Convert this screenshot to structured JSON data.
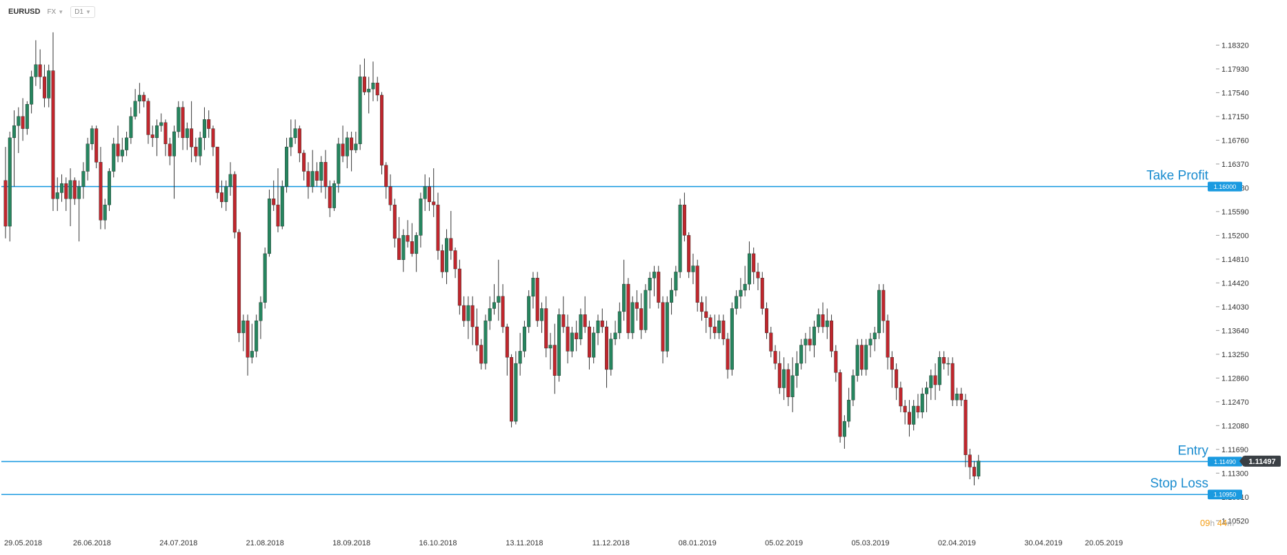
{
  "toolbar": {
    "symbol": "EURUSD",
    "market": "FX",
    "timeframe": "D1"
  },
  "timer": {
    "hours": "09",
    "h_unit": "h",
    "minutes": "44",
    "m_unit": "m"
  },
  "colors": {
    "bull": "#26855f",
    "bear": "#c0262d",
    "wick": "#333333",
    "level_line": "#1a9ae0",
    "level_tag": "#1a9ae0",
    "current_tag": "#3a3f44"
  },
  "chart_data": {
    "type": "candlestick",
    "title": "",
    "xlabel": "",
    "ylabel": "",
    "ylim": [
      1.1041,
      1.1863
    ],
    "y_ticks": [
      "1.18320",
      "1.17930",
      "1.17540",
      "1.17150",
      "1.16760",
      "1.16370",
      "1.15980",
      "1.15590",
      "1.15200",
      "1.14810",
      "1.14420",
      "1.14030",
      "1.13640",
      "1.13250",
      "1.12860",
      "1.12470",
      "1.12080",
      "1.11690",
      "1.11300",
      "1.10910",
      "1.10520"
    ],
    "x_ticks": [
      {
        "label": "29.05.2018",
        "idx": 0
      },
      {
        "label": "26.06.2018",
        "idx": 20
      },
      {
        "label": "24.07.2018",
        "idx": 40
      },
      {
        "label": "21.08.2018",
        "idx": 60
      },
      {
        "label": "18.09.2018",
        "idx": 80
      },
      {
        "label": "16.10.2018",
        "idx": 100
      },
      {
        "label": "13.11.2018",
        "idx": 120
      },
      {
        "label": "11.12.2018",
        "idx": 140
      },
      {
        "label": "08.01.2019",
        "idx": 160
      },
      {
        "label": "05.02.2019",
        "idx": 180
      },
      {
        "label": "05.03.2019",
        "idx": 200
      },
      {
        "label": "02.04.2019",
        "idx": 220
      },
      {
        "label": "30.04.2019",
        "idx": 240
      },
      {
        "label": "20.05.2019",
        "idx": 254
      }
    ],
    "levels": [
      {
        "name": "Take Profit",
        "tag": "1.16000",
        "value": 1.16
      },
      {
        "name": "Entry",
        "tag": "1.11490",
        "value": 1.1149
      },
      {
        "name": "Stop Loss",
        "tag": "1.10950",
        "value": 1.1095
      }
    ],
    "current_price": {
      "tag": "1.11497",
      "value": 1.11497
    },
    "candles": [
      [
        1.161,
        1.1665,
        1.1515,
        1.1535
      ],
      [
        1.1535,
        1.169,
        1.151,
        1.168
      ],
      [
        1.168,
        1.1725,
        1.16,
        1.17
      ],
      [
        1.17,
        1.173,
        1.1655,
        1.1715
      ],
      [
        1.1715,
        1.1745,
        1.1675,
        1.1695
      ],
      [
        1.1695,
        1.174,
        1.1685,
        1.1735
      ],
      [
        1.1735,
        1.179,
        1.172,
        1.178
      ],
      [
        1.178,
        1.184,
        1.1765,
        1.18
      ],
      [
        1.18,
        1.1825,
        1.176,
        1.178
      ],
      [
        1.178,
        1.18,
        1.173,
        1.1745
      ],
      [
        1.1745,
        1.18,
        1.173,
        1.179
      ],
      [
        1.179,
        1.1853,
        1.156,
        1.158
      ],
      [
        1.158,
        1.1615,
        1.156,
        1.159
      ],
      [
        1.159,
        1.162,
        1.1575,
        1.1605
      ],
      [
        1.1605,
        1.1615,
        1.156,
        1.158
      ],
      [
        1.158,
        1.163,
        1.1535,
        1.161
      ],
      [
        1.161,
        1.1615,
        1.157,
        1.158
      ],
      [
        1.158,
        1.161,
        1.151,
        1.16
      ],
      [
        1.16,
        1.164,
        1.158,
        1.1625
      ],
      [
        1.1625,
        1.168,
        1.161,
        1.167
      ],
      [
        1.167,
        1.17,
        1.166,
        1.1695
      ],
      [
        1.1695,
        1.17,
        1.163,
        1.164
      ],
      [
        1.164,
        1.1665,
        1.153,
        1.1545
      ],
      [
        1.1545,
        1.158,
        1.153,
        1.157
      ],
      [
        1.157,
        1.163,
        1.156,
        1.1625
      ],
      [
        1.1625,
        1.168,
        1.1615,
        1.167
      ],
      [
        1.167,
        1.17,
        1.164,
        1.165
      ],
      [
        1.165,
        1.168,
        1.164,
        1.166
      ],
      [
        1.166,
        1.169,
        1.165,
        1.168
      ],
      [
        1.168,
        1.173,
        1.167,
        1.1715
      ],
      [
        1.1715,
        1.176,
        1.171,
        1.174
      ],
      [
        1.174,
        1.177,
        1.172,
        1.175
      ],
      [
        1.175,
        1.1755,
        1.173,
        1.174
      ],
      [
        1.174,
        1.1745,
        1.167,
        1.1685
      ],
      [
        1.1685,
        1.17,
        1.1665,
        1.168
      ],
      [
        1.168,
        1.171,
        1.165,
        1.17
      ],
      [
        1.17,
        1.172,
        1.169,
        1.1705
      ],
      [
        1.1705,
        1.171,
        1.165,
        1.167
      ],
      [
        1.167,
        1.168,
        1.1635,
        1.165
      ],
      [
        1.165,
        1.17,
        1.158,
        1.169
      ],
      [
        1.169,
        1.174,
        1.168,
        1.173
      ],
      [
        1.173,
        1.174,
        1.166,
        1.168
      ],
      [
        1.168,
        1.1705,
        1.166,
        1.1695
      ],
      [
        1.1695,
        1.174,
        1.164,
        1.1665
      ],
      [
        1.1665,
        1.168,
        1.164,
        1.165
      ],
      [
        1.165,
        1.169,
        1.1635,
        1.168
      ],
      [
        1.168,
        1.173,
        1.166,
        1.171
      ],
      [
        1.171,
        1.1725,
        1.168,
        1.1695
      ],
      [
        1.1695,
        1.17,
        1.165,
        1.1665
      ],
      [
        1.1665,
        1.1665,
        1.158,
        1.159
      ],
      [
        1.159,
        1.161,
        1.1565,
        1.1575
      ],
      [
        1.1575,
        1.161,
        1.156,
        1.16
      ],
      [
        1.16,
        1.164,
        1.1585,
        1.162
      ],
      [
        1.162,
        1.1625,
        1.1515,
        1.1525
      ],
      [
        1.1525,
        1.153,
        1.1345,
        1.136
      ],
      [
        1.136,
        1.139,
        1.133,
        1.138
      ],
      [
        1.138,
        1.139,
        1.129,
        1.132
      ],
      [
        1.132,
        1.1375,
        1.131,
        1.133
      ],
      [
        1.133,
        1.139,
        1.132,
        1.138
      ],
      [
        1.138,
        1.142,
        1.135,
        1.141
      ],
      [
        1.141,
        1.15,
        1.14,
        1.149
      ],
      [
        1.149,
        1.1595,
        1.1485,
        1.158
      ],
      [
        1.158,
        1.161,
        1.156,
        1.157
      ],
      [
        1.157,
        1.163,
        1.1525,
        1.1535
      ],
      [
        1.1535,
        1.161,
        1.153,
        1.16
      ],
      [
        1.16,
        1.168,
        1.159,
        1.1665
      ],
      [
        1.1665,
        1.171,
        1.165,
        1.168
      ],
      [
        1.168,
        1.171,
        1.167,
        1.1695
      ],
      [
        1.1695,
        1.17,
        1.164,
        1.1655
      ],
      [
        1.1655,
        1.166,
        1.161,
        1.1625
      ],
      [
        1.1625,
        1.164,
        1.158,
        1.16
      ],
      [
        1.16,
        1.166,
        1.159,
        1.1625
      ],
      [
        1.1625,
        1.164,
        1.16,
        1.161
      ],
      [
        1.161,
        1.165,
        1.159,
        1.164
      ],
      [
        1.164,
        1.166,
        1.158,
        1.16
      ],
      [
        1.16,
        1.161,
        1.155,
        1.1565
      ],
      [
        1.1565,
        1.161,
        1.156,
        1.1605
      ],
      [
        1.1605,
        1.168,
        1.159,
        1.167
      ],
      [
        1.167,
        1.17,
        1.164,
        1.165
      ],
      [
        1.165,
        1.169,
        1.163,
        1.168
      ],
      [
        1.168,
        1.169,
        1.1625,
        1.166
      ],
      [
        1.166,
        1.169,
        1.1655,
        1.167
      ],
      [
        1.167,
        1.18,
        1.166,
        1.178
      ],
      [
        1.178,
        1.181,
        1.175,
        1.1755
      ],
      [
        1.1755,
        1.178,
        1.172,
        1.176
      ],
      [
        1.176,
        1.1805,
        1.174,
        1.177
      ],
      [
        1.177,
        1.178,
        1.174,
        1.175
      ],
      [
        1.175,
        1.1755,
        1.162,
        1.1635
      ],
      [
        1.1635,
        1.164,
        1.158,
        1.16
      ],
      [
        1.16,
        1.162,
        1.156,
        1.157
      ],
      [
        1.157,
        1.158,
        1.15,
        1.1515
      ],
      [
        1.1515,
        1.155,
        1.148,
        1.148
      ],
      [
        1.148,
        1.153,
        1.146,
        1.152
      ],
      [
        1.152,
        1.1545,
        1.15,
        1.151
      ],
      [
        1.151,
        1.154,
        1.1485,
        1.149
      ],
      [
        1.149,
        1.1525,
        1.146,
        1.152
      ],
      [
        1.152,
        1.159,
        1.15,
        1.158
      ],
      [
        1.158,
        1.162,
        1.156,
        1.16
      ],
      [
        1.16,
        1.1615,
        1.156,
        1.1575
      ],
      [
        1.1575,
        1.163,
        1.155,
        1.157
      ],
      [
        1.157,
        1.159,
        1.148,
        1.1495
      ],
      [
        1.1495,
        1.1505,
        1.145,
        1.146
      ],
      [
        1.146,
        1.153,
        1.144,
        1.1515
      ],
      [
        1.1515,
        1.156,
        1.148,
        1.1495
      ],
      [
        1.1495,
        1.15,
        1.145,
        1.1465
      ],
      [
        1.1465,
        1.148,
        1.139,
        1.1405
      ],
      [
        1.1405,
        1.142,
        1.137,
        1.138
      ],
      [
        1.138,
        1.142,
        1.135,
        1.1405
      ],
      [
        1.1405,
        1.142,
        1.134,
        1.137
      ],
      [
        1.137,
        1.14,
        1.133,
        1.134
      ],
      [
        1.134,
        1.135,
        1.13,
        1.131
      ],
      [
        1.131,
        1.139,
        1.13,
        1.138
      ],
      [
        1.138,
        1.142,
        1.1365,
        1.14
      ],
      [
        1.14,
        1.144,
        1.139,
        1.141
      ],
      [
        1.141,
        1.148,
        1.138,
        1.142
      ],
      [
        1.142,
        1.144,
        1.136,
        1.137
      ],
      [
        1.137,
        1.1375,
        1.129,
        1.132
      ],
      [
        1.132,
        1.1325,
        1.1205,
        1.1215
      ],
      [
        1.1215,
        1.133,
        1.121,
        1.131
      ],
      [
        1.131,
        1.136,
        1.129,
        1.133
      ],
      [
        1.133,
        1.138,
        1.132,
        1.137
      ],
      [
        1.137,
        1.143,
        1.136,
        1.142
      ],
      [
        1.142,
        1.146,
        1.14,
        1.145
      ],
      [
        1.145,
        1.146,
        1.137,
        1.138
      ],
      [
        1.138,
        1.141,
        1.136,
        1.14
      ],
      [
        1.14,
        1.142,
        1.132,
        1.1335
      ],
      [
        1.1335,
        1.136,
        1.13,
        1.134
      ],
      [
        1.134,
        1.1375,
        1.126,
        1.129
      ],
      [
        1.129,
        1.14,
        1.128,
        1.139
      ],
      [
        1.139,
        1.142,
        1.136,
        1.137
      ],
      [
        1.137,
        1.139,
        1.131,
        1.133
      ],
      [
        1.133,
        1.137,
        1.132,
        1.136
      ],
      [
        1.136,
        1.138,
        1.133,
        1.135
      ],
      [
        1.135,
        1.14,
        1.134,
        1.139
      ],
      [
        1.139,
        1.142,
        1.136,
        1.137
      ],
      [
        1.137,
        1.138,
        1.13,
        1.132
      ],
      [
        1.132,
        1.137,
        1.131,
        1.136
      ],
      [
        1.136,
        1.139,
        1.134,
        1.138
      ],
      [
        1.138,
        1.14,
        1.136,
        1.137
      ],
      [
        1.137,
        1.138,
        1.127,
        1.13
      ],
      [
        1.13,
        1.136,
        1.129,
        1.135
      ],
      [
        1.135,
        1.138,
        1.134,
        1.136
      ],
      [
        1.136,
        1.141,
        1.135,
        1.1395
      ],
      [
        1.1395,
        1.148,
        1.138,
        1.144
      ],
      [
        1.144,
        1.145,
        1.135,
        1.136
      ],
      [
        1.136,
        1.142,
        1.135,
        1.141
      ],
      [
        1.141,
        1.143,
        1.138,
        1.14
      ],
      [
        1.14,
        1.1425,
        1.135,
        1.1365
      ],
      [
        1.1365,
        1.144,
        1.136,
        1.143
      ],
      [
        1.143,
        1.146,
        1.14,
        1.145
      ],
      [
        1.145,
        1.147,
        1.142,
        1.146
      ],
      [
        1.146,
        1.147,
        1.14,
        1.141
      ],
      [
        1.141,
        1.142,
        1.131,
        1.133
      ],
      [
        1.133,
        1.142,
        1.132,
        1.141
      ],
      [
        1.141,
        1.145,
        1.139,
        1.143
      ],
      [
        1.143,
        1.147,
        1.142,
        1.146
      ],
      [
        1.146,
        1.158,
        1.145,
        1.157
      ],
      [
        1.157,
        1.159,
        1.151,
        1.152
      ],
      [
        1.152,
        1.1525,
        1.145,
        1.146
      ],
      [
        1.146,
        1.149,
        1.144,
        1.147
      ],
      [
        1.147,
        1.148,
        1.1395,
        1.141
      ],
      [
        1.141,
        1.142,
        1.138,
        1.1395
      ],
      [
        1.1395,
        1.142,
        1.136,
        1.1385
      ],
      [
        1.1385,
        1.139,
        1.135,
        1.137
      ],
      [
        1.137,
        1.139,
        1.135,
        1.136
      ],
      [
        1.136,
        1.139,
        1.135,
        1.138
      ],
      [
        1.138,
        1.139,
        1.134,
        1.135
      ],
      [
        1.135,
        1.136,
        1.1285,
        1.13
      ],
      [
        1.13,
        1.141,
        1.129,
        1.14
      ],
      [
        1.14,
        1.143,
        1.139,
        1.142
      ],
      [
        1.142,
        1.145,
        1.14,
        1.143
      ],
      [
        1.143,
        1.147,
        1.142,
        1.144
      ],
      [
        1.144,
        1.151,
        1.143,
        1.149
      ],
      [
        1.149,
        1.15,
        1.144,
        1.146
      ],
      [
        1.146,
        1.1475,
        1.143,
        1.145
      ],
      [
        1.145,
        1.146,
        1.139,
        1.14
      ],
      [
        1.14,
        1.141,
        1.135,
        1.136
      ],
      [
        1.136,
        1.137,
        1.132,
        1.133
      ],
      [
        1.133,
        1.134,
        1.13,
        1.131
      ],
      [
        1.131,
        1.133,
        1.126,
        1.127
      ],
      [
        1.127,
        1.132,
        1.125,
        1.13
      ],
      [
        1.13,
        1.131,
        1.124,
        1.1255
      ],
      [
        1.1255,
        1.132,
        1.123,
        1.129
      ],
      [
        1.129,
        1.133,
        1.127,
        1.131
      ],
      [
        1.131,
        1.135,
        1.13,
        1.134
      ],
      [
        1.134,
        1.136,
        1.131,
        1.135
      ],
      [
        1.135,
        1.137,
        1.133,
        1.134
      ],
      [
        1.134,
        1.138,
        1.132,
        1.137
      ],
      [
        1.137,
        1.14,
        1.136,
        1.139
      ],
      [
        1.139,
        1.141,
        1.136,
        1.137
      ],
      [
        1.137,
        1.14,
        1.135,
        1.138
      ],
      [
        1.138,
        1.139,
        1.132,
        1.133
      ],
      [
        1.133,
        1.134,
        1.128,
        1.1295
      ],
      [
        1.1295,
        1.13,
        1.118,
        1.119
      ],
      [
        1.119,
        1.1225,
        1.117,
        1.1215
      ],
      [
        1.1215,
        1.127,
        1.1205,
        1.125
      ],
      [
        1.125,
        1.13,
        1.124,
        1.129
      ],
      [
        1.129,
        1.135,
        1.128,
        1.134
      ],
      [
        1.134,
        1.135,
        1.129,
        1.13
      ],
      [
        1.13,
        1.135,
        1.129,
        1.134
      ],
      [
        1.134,
        1.136,
        1.132,
        1.135
      ],
      [
        1.135,
        1.137,
        1.133,
        1.136
      ],
      [
        1.136,
        1.144,
        1.135,
        1.143
      ],
      [
        1.143,
        1.144,
        1.136,
        1.138
      ],
      [
        1.138,
        1.139,
        1.13,
        1.132
      ],
      [
        1.132,
        1.133,
        1.127,
        1.13
      ],
      [
        1.13,
        1.131,
        1.125,
        1.127
      ],
      [
        1.127,
        1.128,
        1.123,
        1.124
      ],
      [
        1.124,
        1.125,
        1.121,
        1.123
      ],
      [
        1.123,
        1.125,
        1.119,
        1.121
      ],
      [
        1.121,
        1.125,
        1.12,
        1.124
      ],
      [
        1.124,
        1.126,
        1.122,
        1.123
      ],
      [
        1.123,
        1.127,
        1.122,
        1.126
      ],
      [
        1.126,
        1.128,
        1.123,
        1.127
      ],
      [
        1.127,
        1.13,
        1.125,
        1.129
      ],
      [
        1.129,
        1.131,
        1.125,
        1.1275
      ],
      [
        1.1275,
        1.133,
        1.1265,
        1.132
      ],
      [
        1.132,
        1.133,
        1.13,
        1.131
      ],
      [
        1.131,
        1.132,
        1.129,
        1.131
      ],
      [
        1.131,
        1.132,
        1.124,
        1.125
      ],
      [
        1.125,
        1.127,
        1.124,
        1.126
      ],
      [
        1.126,
        1.127,
        1.124,
        1.125
      ],
      [
        1.125,
        1.126,
        1.114,
        1.116
      ],
      [
        1.116,
        1.117,
        1.112,
        1.114
      ],
      [
        1.114,
        1.115,
        1.111,
        1.1125
      ],
      [
        1.1125,
        1.116,
        1.112,
        1.115
      ]
    ]
  }
}
